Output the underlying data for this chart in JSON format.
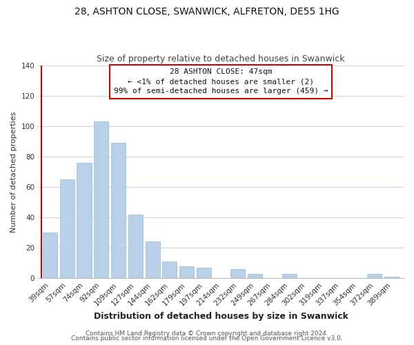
{
  "title": "28, ASHTON CLOSE, SWANWICK, ALFRETON, DE55 1HG",
  "subtitle": "Size of property relative to detached houses in Swanwick",
  "xlabel": "Distribution of detached houses by size in Swanwick",
  "ylabel": "Number of detached properties",
  "categories": [
    "39sqm",
    "57sqm",
    "74sqm",
    "92sqm",
    "109sqm",
    "127sqm",
    "144sqm",
    "162sqm",
    "179sqm",
    "197sqm",
    "214sqm",
    "232sqm",
    "249sqm",
    "267sqm",
    "284sqm",
    "302sqm",
    "319sqm",
    "337sqm",
    "354sqm",
    "372sqm",
    "389sqm"
  ],
  "values": [
    30,
    65,
    76,
    103,
    89,
    42,
    24,
    11,
    8,
    7,
    0,
    6,
    3,
    0,
    3,
    0,
    0,
    0,
    0,
    3,
    1
  ],
  "bar_color": "#b8d0e8",
  "annotation_title": "28 ASHTON CLOSE: 47sqm",
  "annotation_line1": "← <1% of detached houses are smaller (2)",
  "annotation_line2": "99% of semi-detached houses are larger (459) →",
  "ylim": [
    0,
    140
  ],
  "yticks": [
    0,
    20,
    40,
    60,
    80,
    100,
    120,
    140
  ],
  "footer1": "Contains HM Land Registry data © Crown copyright and database right 2024.",
  "footer2": "Contains public sector information licensed under the Open Government Licence v3.0.",
  "background_color": "#ffffff",
  "grid_color": "#c8d8ec",
  "title_fontsize": 10,
  "subtitle_fontsize": 9,
  "xlabel_fontsize": 9,
  "ylabel_fontsize": 8,
  "tick_fontsize": 7.5,
  "annotation_fontsize": 8,
  "footer_fontsize": 6.5,
  "red_line_color": "#cc0000",
  "bar_edge_color": "#9ab8d8"
}
